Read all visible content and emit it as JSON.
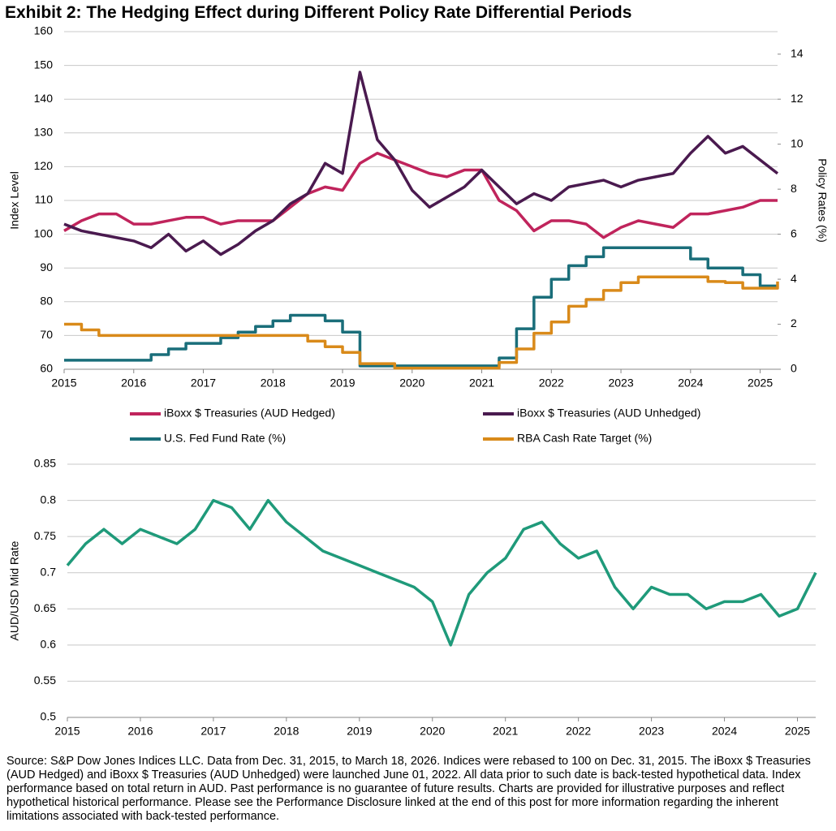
{
  "title": "Exhibit 2: The Hedging Effect during Different Policy Rate Differential Periods",
  "source": "Source: S&P Dow Jones Indices LLC. Data from Dec. 31, 2015, to March 18, 2026. Indices were rebased to 100 on Dec. 31, 2015. The iBoxx $ Treasuries (AUD Hedged) and iBoxx $ Treasuries (AUD Unhedged) were launched June 01, 2022. All data prior to such date is back-tested hypothetical data. Index performance based on total return in AUD. Past performance is no guarantee of future results. Charts are provided for illustrative purposes and reflect hypothetical historical performance. Please see the Performance Disclosure linked at the end of this post for more information regarding the inherent limitations associated with back-tested performance.",
  "chart_data": [
    {
      "type": "line",
      "ylabel": "Index Level",
      "y2label": "Policy Rates (%)",
      "x": [
        2015,
        2015.25,
        2015.5,
        2015.75,
        2016,
        2016.25,
        2016.5,
        2016.75,
        2017,
        2017.25,
        2017.5,
        2017.75,
        2018,
        2018.25,
        2018.5,
        2018.75,
        2019,
        2019.25,
        2019.5,
        2019.75,
        2020,
        2020.25,
        2020.5,
        2020.75,
        2021,
        2021.25,
        2021.5,
        2021.75,
        2022,
        2022.25,
        2022.5,
        2022.75,
        2023,
        2023.25,
        2023.5,
        2023.75,
        2024,
        2024.25,
        2024.5,
        2024.75,
        2025,
        2025.25
      ],
      "xlim": [
        2015,
        2025.25
      ],
      "xticks": [
        2015,
        2016,
        2017,
        2018,
        2019,
        2020,
        2021,
        2022,
        2023,
        2024,
        2025
      ],
      "ylim": [
        60,
        160
      ],
      "yticks": [
        60,
        70,
        80,
        90,
        100,
        110,
        120,
        130,
        140,
        150,
        160
      ],
      "y2lim": [
        0,
        15
      ],
      "y2ticks": [
        0,
        2,
        4,
        6,
        8,
        10,
        12,
        14
      ],
      "grid": true,
      "legend": "lower center",
      "series": [
        {
          "name": "iBoxx $ Treasuries (AUD Hedged)",
          "color": "#c0245c",
          "values": [
            101,
            104,
            106,
            106,
            103,
            103,
            104,
            105,
            105,
            103,
            104,
            104,
            104,
            108,
            112,
            114,
            113,
            121,
            124,
            122,
            120,
            118,
            117,
            119,
            119,
            110,
            107,
            101,
            104,
            104,
            103,
            99,
            102,
            104,
            103,
            102,
            106,
            106,
            107,
            108,
            110,
            110
          ]
        },
        {
          "name": "iBoxx $ Treasuries (AUD Unhedged)",
          "color": "#4a1a4f",
          "values": [
            103,
            101,
            100,
            99,
            98,
            96,
            100,
            95,
            98,
            94,
            97,
            101,
            104,
            109,
            112,
            121,
            118,
            148,
            128,
            122,
            113,
            108,
            111,
            114,
            119,
            114,
            109,
            112,
            110,
            114,
            115,
            116,
            114,
            116,
            117,
            118,
            124,
            129,
            124,
            126,
            122,
            118
          ]
        },
        {
          "name": "U.S. Fed Fund Rate (%)",
          "color": "#1a6e7a",
          "axis": "y2",
          "step": true,
          "values": [
            0.4,
            0.4,
            0.4,
            0.4,
            0.4,
            0.65,
            0.9,
            1.15,
            1.15,
            1.4,
            1.65,
            1.9,
            2.15,
            2.4,
            2.4,
            2.15,
            1.65,
            0.15,
            0.15,
            0.15,
            0.15,
            0.15,
            0.15,
            0.15,
            0.15,
            0.5,
            1.8,
            3.2,
            4.0,
            4.6,
            5.0,
            5.4,
            5.4,
            5.4,
            5.4,
            5.4,
            4.9,
            4.5,
            4.5,
            4.2,
            3.7,
            3.7
          ]
        },
        {
          "name": "RBA Cash Rate Target (%)",
          "color": "#d98a1a",
          "axis": "y2",
          "step": true,
          "values": [
            2.0,
            1.75,
            1.5,
            1.5,
            1.5,
            1.5,
            1.5,
            1.5,
            1.5,
            1.5,
            1.5,
            1.5,
            1.5,
            1.5,
            1.25,
            1.0,
            0.75,
            0.25,
            0.25,
            0.05,
            0.05,
            0.05,
            0.05,
            0.05,
            0.05,
            0.3,
            0.9,
            1.6,
            2.1,
            2.8,
            3.1,
            3.5,
            3.85,
            4.1,
            4.1,
            4.1,
            4.1,
            3.9,
            3.85,
            3.6,
            3.6,
            3.9
          ]
        }
      ]
    },
    {
      "type": "line",
      "ylabel": "AUD/USD Mid Rate",
      "x": [
        2015,
        2015.25,
        2015.5,
        2015.75,
        2016,
        2016.25,
        2016.5,
        2016.75,
        2017,
        2017.25,
        2017.5,
        2017.75,
        2018,
        2018.25,
        2018.5,
        2018.75,
        2019,
        2019.25,
        2019.5,
        2019.75,
        2020,
        2020.25,
        2020.5,
        2020.75,
        2021,
        2021.25,
        2021.5,
        2021.75,
        2022,
        2022.25,
        2022.5,
        2022.75,
        2023,
        2023.25,
        2023.5,
        2023.75,
        2024,
        2024.25,
        2024.5,
        2024.75,
        2025,
        2025.25
      ],
      "xlim": [
        2015,
        2025.25
      ],
      "xticks": [
        2015,
        2016,
        2017,
        2018,
        2019,
        2020,
        2021,
        2022,
        2023,
        2024,
        2025
      ],
      "ylim": [
        0.5,
        0.85
      ],
      "yticks": [
        0.5,
        0.55,
        0.6,
        0.65,
        0.7,
        0.75,
        0.8,
        0.85
      ],
      "grid": true,
      "series": [
        {
          "color": "#1f9a7a",
          "values": [
            0.71,
            0.74,
            0.76,
            0.74,
            0.76,
            0.75,
            0.74,
            0.76,
            0.8,
            0.79,
            0.76,
            0.8,
            0.77,
            0.75,
            0.73,
            0.72,
            0.71,
            0.7,
            0.69,
            0.68,
            0.66,
            0.6,
            0.67,
            0.7,
            0.72,
            0.76,
            0.77,
            0.74,
            0.72,
            0.73,
            0.68,
            0.65,
            0.68,
            0.67,
            0.67,
            0.65,
            0.66,
            0.66,
            0.67,
            0.64,
            0.65,
            0.7
          ]
        }
      ]
    }
  ]
}
